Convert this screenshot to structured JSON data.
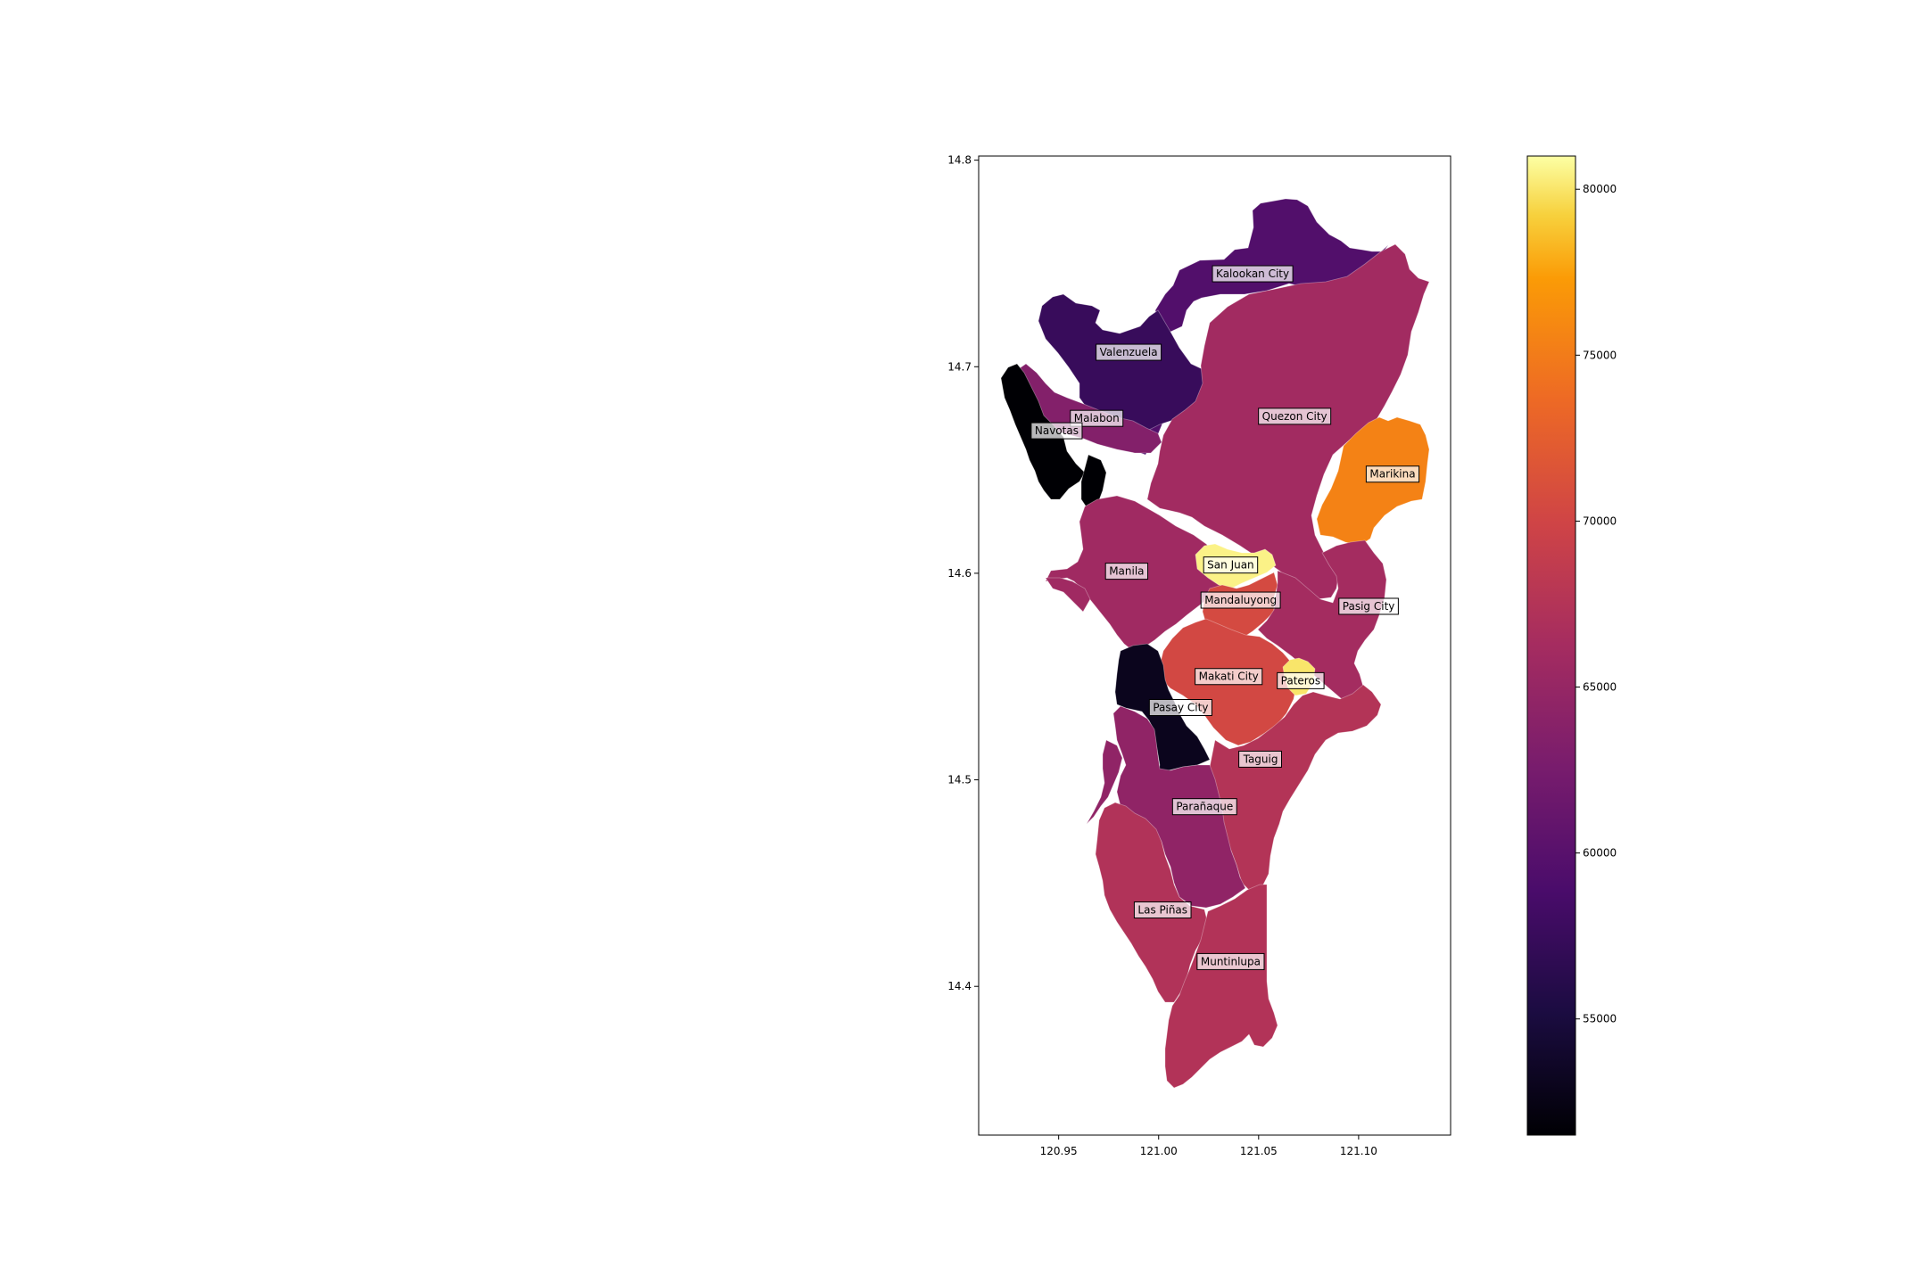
{
  "chart_data": {
    "type": "choropleth",
    "x_ticks": [
      "120.95",
      "121.00",
      "121.05",
      "121.10"
    ],
    "y_ticks": [
      "14.4",
      "14.5",
      "14.6",
      "14.7",
      "14.8"
    ],
    "x_tick_values": [
      120.95,
      121.0,
      121.05,
      121.1
    ],
    "y_tick_values": [
      14.4,
      14.5,
      14.6,
      14.7,
      14.8
    ],
    "xlim": [
      120.91,
      121.146
    ],
    "ylim": [
      14.328,
      14.802
    ],
    "colormap": "inferno",
    "colorbar": {
      "range": [
        51500,
        81000
      ],
      "ticks": [
        "55000",
        "60000",
        "65000",
        "70000",
        "75000",
        "80000"
      ],
      "tick_values": [
        55000,
        60000,
        65000,
        70000,
        75000,
        80000
      ]
    },
    "regions": [
      {
        "name": "Kalookan City",
        "value": 59500,
        "label_lon": 121.047,
        "label_lat": 14.745
      },
      {
        "name": "Valenzuela",
        "value": 57500,
        "label_lon": 120.985,
        "label_lat": 14.707
      },
      {
        "name": "Malabon",
        "value": 63500,
        "label_lon": 120.969,
        "label_lat": 14.675
      },
      {
        "name": "Navotas",
        "value": 51500,
        "label_lon": 120.949,
        "label_lat": 14.669
      },
      {
        "name": "Quezon City",
        "value": 66000,
        "label_lon": 121.068,
        "label_lat": 14.676
      },
      {
        "name": "Marikina",
        "value": 75500,
        "label_lon": 121.117,
        "label_lat": 14.648
      },
      {
        "name": "San Juan",
        "value": 80500,
        "label_lon": 121.036,
        "label_lat": 14.604
      },
      {
        "name": "Manila",
        "value": 65800,
        "label_lon": 120.984,
        "label_lat": 14.601
      },
      {
        "name": "Mandaluyong",
        "value": 70500,
        "label_lon": 121.041,
        "label_lat": 14.587
      },
      {
        "name": "Pasig City",
        "value": 66200,
        "label_lon": 121.105,
        "label_lat": 14.584
      },
      {
        "name": "Makati City",
        "value": 70300,
        "label_lon": 121.035,
        "label_lat": 14.55
      },
      {
        "name": "Pateros",
        "value": 80000,
        "label_lon": 121.071,
        "label_lat": 14.548
      },
      {
        "name": "Pasay City",
        "value": 53000,
        "label_lon": 121.011,
        "label_lat": 14.535
      },
      {
        "name": "Taguig",
        "value": 67500,
        "label_lon": 121.051,
        "label_lat": 14.51
      },
      {
        "name": "Parañaque",
        "value": 64500,
        "label_lon": 121.023,
        "label_lat": 14.487
      },
      {
        "name": "Las Piñas",
        "value": 67300,
        "label_lon": 121.002,
        "label_lat": 14.437
      },
      {
        "name": "Muntinlupa",
        "value": 67400,
        "label_lon": 121.036,
        "label_lat": 14.412
      }
    ]
  }
}
